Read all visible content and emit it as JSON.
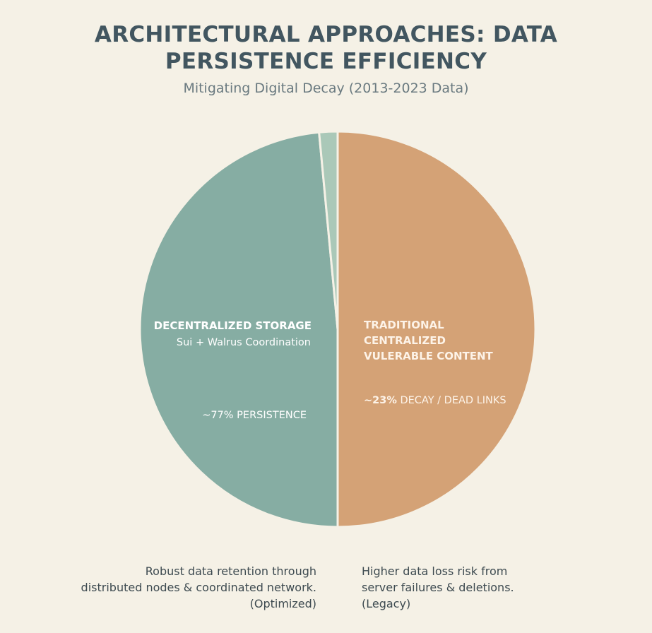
{
  "chart_data": {
    "type": "pie",
    "title_lines": [
      "ARCHITECTURAL APPROACHES: DATA",
      "PERSISTENCE EFFICIENCY"
    ],
    "subtitle": "Mitigating Digital Decay (2013-2023 Data)",
    "slices": [
      {
        "label": "TRADITIONAL CENTRALIZED VULERABLE CONTENT",
        "label_lines": [
          "TRADITIONAL",
          "CENTRALIZED",
          "VULERABLE CONTENT"
        ],
        "value_label_bold": "~23%",
        "value_label_rest": " DECAY / DEAD LINKS",
        "value": 50,
        "color": "#d4a276"
      },
      {
        "label": "DECENTRALIZED STORAGE",
        "sublabel": "Sui + Walrus Coordination",
        "value_label": "~77% PERSISTENCE",
        "value": 48.5,
        "color": "#86ada3"
      },
      {
        "label": "",
        "value": 1.5,
        "color": "#aac8b8"
      }
    ],
    "captions": {
      "left": [
        "Robust data retention through",
        "distributed nodes & coordinated network.",
        "(Optimized)"
      ],
      "right": [
        "Higher data loss risk from",
        "server failures & deletions.",
        "(Legacy)"
      ]
    }
  }
}
